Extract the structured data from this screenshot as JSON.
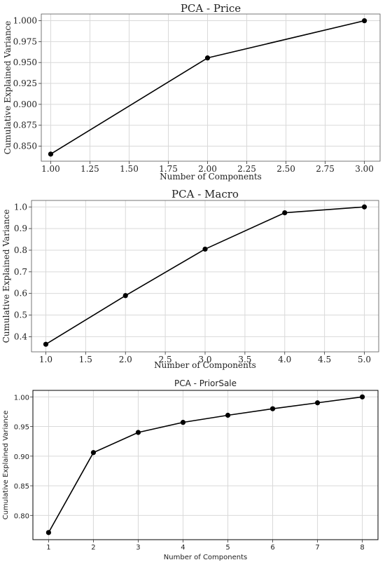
{
  "chart_data": [
    {
      "type": "line",
      "title": "PCA - Price",
      "xlabel": "Number of Components",
      "ylabel": "Cumulative Explained Variance",
      "x": [
        1,
        2,
        3
      ],
      "y": [
        0.8405,
        0.9555,
        1.0
      ],
      "xlim": [
        0.94,
        3.1
      ],
      "ylim": [
        0.832,
        1.008
      ],
      "xticks": [
        1.0,
        1.25,
        1.5,
        1.75,
        2.0,
        2.25,
        2.5,
        2.75,
        3.0
      ],
      "xtick_labels": [
        "1.00",
        "1.25",
        "1.50",
        "1.75",
        "2.00",
        "2.25",
        "2.50",
        "2.75",
        "3.00"
      ],
      "yticks": [
        0.85,
        0.875,
        0.9,
        0.925,
        0.95,
        0.975,
        1.0
      ],
      "ytick_labels": [
        "0.850",
        "0.875",
        "0.900",
        "0.925",
        "0.950",
        "0.975",
        "1.000"
      ],
      "grid": true,
      "line_color": "#000000",
      "marker": "circle"
    },
    {
      "type": "line",
      "title": "PCA - Macro",
      "xlabel": "Number of Components",
      "ylabel": "Cumulative Explained Variance",
      "x": [
        1,
        2,
        3,
        4,
        5
      ],
      "y": [
        0.365,
        0.59,
        0.805,
        0.973,
        1.0
      ],
      "xlim": [
        0.82,
        5.18
      ],
      "ylim": [
        0.33,
        1.03
      ],
      "xticks": [
        1.0,
        1.5,
        2.0,
        2.5,
        3.0,
        3.5,
        4.0,
        4.5,
        5.0
      ],
      "xtick_labels": [
        "1.0",
        "1.5",
        "2.0",
        "2.5",
        "3.0",
        "3.5",
        "4.0",
        "4.5",
        "5.0"
      ],
      "yticks": [
        0.4,
        0.5,
        0.6,
        0.7,
        0.8,
        0.9,
        1.0
      ],
      "ytick_labels": [
        "0.4",
        "0.5",
        "0.6",
        "0.7",
        "0.8",
        "0.9",
        "1.0"
      ],
      "grid": true,
      "line_color": "#000000",
      "marker": "circle"
    },
    {
      "type": "line",
      "title": "PCA - PriorSale",
      "xlabel": "Number of Components",
      "ylabel": "Cumulative Explained Variance",
      "x": [
        1,
        2,
        3,
        4,
        5,
        6,
        7,
        8
      ],
      "y": [
        0.771,
        0.906,
        0.94,
        0.957,
        0.969,
        0.98,
        0.99,
        1.0
      ],
      "xlim": [
        0.65,
        8.35
      ],
      "ylim": [
        0.759,
        1.011
      ],
      "xticks": [
        1,
        2,
        3,
        4,
        5,
        6,
        7,
        8
      ],
      "xtick_labels": [
        "1",
        "2",
        "3",
        "4",
        "5",
        "6",
        "7",
        "8"
      ],
      "yticks": [
        0.8,
        0.85,
        0.9,
        0.95,
        1.0
      ],
      "ytick_labels": [
        "0.80",
        "0.85",
        "0.90",
        "0.95",
        "1.00"
      ],
      "grid": true,
      "line_color": "#000000",
      "marker": "circle"
    }
  ]
}
